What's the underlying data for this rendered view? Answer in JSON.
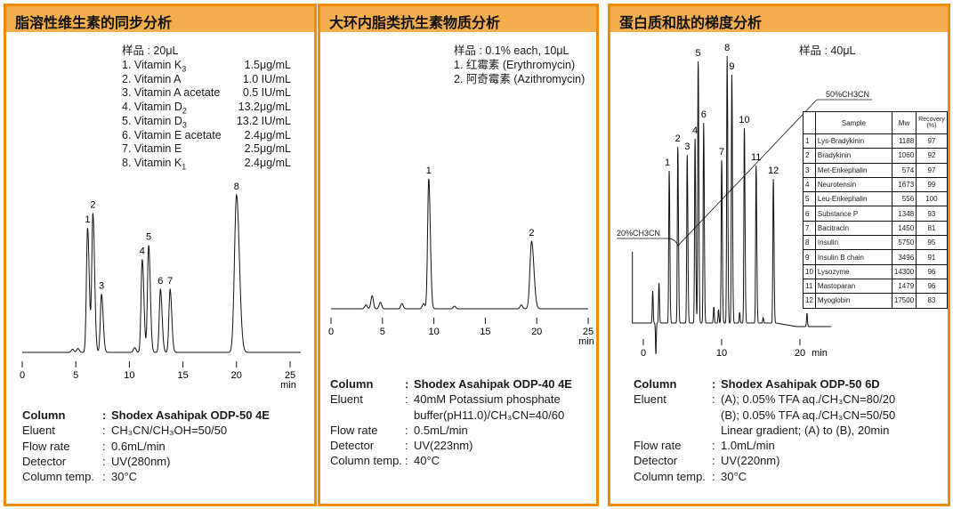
{
  "panels": [
    {
      "title": "脂溶性维生素的同步分析",
      "sample": "样品 : 20μL",
      "compounds": [
        {
          "no": "1.",
          "name": "Vitamin K",
          "sub": "3",
          "conc": "1.5μg/mL"
        },
        {
          "no": "2.",
          "name": "Vitamin A",
          "sub": "",
          "conc": "1.0 IU/mL"
        },
        {
          "no": "3.",
          "name": "Vitamin A acetate",
          "sub": "",
          "conc": "0.5 IU/mL"
        },
        {
          "no": "4.",
          "name": "Vitamin D",
          "sub": "2",
          "conc": "13.2μg/mL"
        },
        {
          "no": "5.",
          "name": "Vitamin D",
          "sub": "3",
          "conc": "13.2 IU/mL"
        },
        {
          "no": "6.",
          "name": "Vitamin E acetate",
          "sub": "",
          "conc": "2.4μg/mL"
        },
        {
          "no": "7.",
          "name": "Vitamin E",
          "sub": "",
          "conc": "2.5μg/mL"
        },
        {
          "no": "8.",
          "name": "Vitamin K",
          "sub": "1",
          "conc": "2.4μg/mL"
        }
      ],
      "conditions": [
        {
          "label": "Column",
          "value": "Shodex Asahipak ODP-50 4E"
        },
        {
          "label": "Eluent",
          "value": "CH₃CN/CH₃OH=50/50"
        },
        {
          "label": "Flow rate",
          "value": "0.6mL/min"
        },
        {
          "label": "Detector",
          "value": "UV(280nm)"
        },
        {
          "label": "Column temp.",
          "value": "30°C"
        }
      ]
    },
    {
      "title": "大环内脂类抗生素物质分析",
      "sample": "样品 : 0.1% each, 10μL",
      "compounds": [
        {
          "line": "1. 红霉素 (Erythromycin)"
        },
        {
          "line": "2. 阿奇霉素 (Azithromycin)"
        }
      ],
      "conditions": [
        {
          "label": "Column",
          "value": "Shodex Asahipak ODP-40 4E"
        },
        {
          "label": "Eluent",
          "value": "40mM Potassium phosphate"
        },
        {
          "label": "",
          "value": "buffer(pH11.0)/CH₃CN=40/60"
        },
        {
          "label": "Flow rate",
          "value": "0.5mL/min"
        },
        {
          "label": "Detector",
          "value": "UV(223nm)"
        },
        {
          "label": "Column temp.",
          "value": "40°C"
        }
      ]
    },
    {
      "title": "蛋白质和肽的梯度分析",
      "sample": "样品 : 40μL",
      "gradient_labels": {
        "start": "20%CH3CN",
        "end": "50%CH3CN"
      },
      "table": {
        "headers": [
          "",
          "Sample",
          "Mw",
          "Recovery (%)"
        ],
        "rows": [
          [
            "1",
            "Lys-Bradykinin",
            "1188",
            "97"
          ],
          [
            "2",
            "Bradykinin",
            "1060",
            "92"
          ],
          [
            "3",
            "Met-Enkephalin",
            "574",
            "97"
          ],
          [
            "4",
            "Neurotensin",
            "1673",
            "99"
          ],
          [
            "5",
            "Leu-Enkephalin",
            "556",
            "100"
          ],
          [
            "6",
            "Substance P",
            "1348",
            "93"
          ],
          [
            "7",
            "Bacitracin",
            "1450",
            "81"
          ],
          [
            "8",
            "Insulin",
            "5750",
            "95"
          ],
          [
            "9",
            "Insulin B chain",
            "3496",
            "91"
          ],
          [
            "10",
            "Lysozyme",
            "14300",
            "96"
          ],
          [
            "11",
            "Mastoparan",
            "1479",
            "96"
          ],
          [
            "12",
            "Myoglobin",
            "17500",
            "83"
          ]
        ]
      },
      "conditions": [
        {
          "label": "Column",
          "value": "Shodex Asahipak ODP-50 6D"
        },
        {
          "label": "Eluent",
          "value": "(A); 0.05% TFA aq./CH₃CN=80/20"
        },
        {
          "label": "",
          "value": "(B); 0.05% TFA aq./CH₃CN=50/50"
        },
        {
          "label": "",
          "value": "Linear gradient; (A) to (B), 20min"
        },
        {
          "label": "Flow rate",
          "value": "1.0mL/min"
        },
        {
          "label": "Detector",
          "value": "UV(220nm)"
        },
        {
          "label": "Column temp.",
          "value": "30°C"
        }
      ]
    }
  ],
  "chart_data": [
    {
      "type": "line",
      "xlabel": "min",
      "xlim": [
        0,
        25
      ],
      "xticks": [
        "0",
        "5",
        "10",
        "15",
        "20",
        "25"
      ],
      "grid": false,
      "peaks": [
        {
          "label": "1",
          "rt": 6.1,
          "height": 79
        },
        {
          "label": "2",
          "rt": 6.6,
          "height": 88
        },
        {
          "label": "3",
          "rt": 7.4,
          "height": 37
        },
        {
          "label": "4",
          "rt": 11.2,
          "height": 59
        },
        {
          "label": "5",
          "rt": 11.8,
          "height": 68
        },
        {
          "label": "6",
          "rt": 12.9,
          "height": 40
        },
        {
          "label": "7",
          "rt": 13.8,
          "height": 40
        },
        {
          "label": "8",
          "rt": 20.0,
          "height": 100
        }
      ],
      "minor_peaks": [
        {
          "rt": 4.7,
          "height": 2
        },
        {
          "rt": 5.2,
          "height": 2.5
        },
        {
          "rt": 10.5,
          "height": 3
        }
      ]
    },
    {
      "type": "line",
      "xlabel": "min",
      "xlim": [
        0,
        25
      ],
      "xticks": [
        "0",
        "5",
        "10",
        "15",
        "20",
        "25"
      ],
      "grid": false,
      "peaks": [
        {
          "label": "1",
          "rt": 9.5,
          "height": 100
        },
        {
          "label": "2",
          "rt": 19.5,
          "height": 52
        }
      ],
      "minor_peaks": [
        {
          "rt": 3.4,
          "height": 3
        },
        {
          "rt": 4.0,
          "height": 10
        },
        {
          "rt": 4.8,
          "height": 5
        },
        {
          "rt": 6.9,
          "height": 4
        },
        {
          "rt": 9.0,
          "height": 4
        },
        {
          "rt": 12.0,
          "height": 2
        },
        {
          "rt": 18.5,
          "height": 3
        }
      ]
    },
    {
      "type": "line",
      "xlabel": "min",
      "xlim": [
        -1,
        21
      ],
      "xticks": [
        "0",
        "10",
        "20"
      ],
      "grid": false,
      "peaks": [
        {
          "label": "1",
          "rt": 3.3,
          "height": 57
        },
        {
          "label": "2",
          "rt": 4.4,
          "height": 66
        },
        {
          "label": "3",
          "rt": 5.6,
          "height": 63
        },
        {
          "label": "4",
          "rt": 6.6,
          "height": 69
        },
        {
          "label": "5",
          "rt": 7.0,
          "height": 98
        },
        {
          "label": "6",
          "rt": 7.7,
          "height": 75
        },
        {
          "label": "7",
          "rt": 10.0,
          "height": 61
        },
        {
          "label": "8",
          "rt": 10.7,
          "height": 100
        },
        {
          "label": "9",
          "rt": 11.3,
          "height": 93
        },
        {
          "label": "10",
          "rt": 12.9,
          "height": 73
        },
        {
          "label": "11",
          "rt": 14.4,
          "height": 59
        },
        {
          "label": "12",
          "rt": 16.6,
          "height": 54
        }
      ],
      "minor_peaks": [
        {
          "rt": 1.2,
          "height": 12
        },
        {
          "rt": 2.0,
          "height": 15
        },
        {
          "rt": 9.0,
          "height": 6
        },
        {
          "rt": 9.6,
          "height": 5
        },
        {
          "rt": 12.3,
          "height": 4
        },
        {
          "rt": 15.3,
          "height": 2
        },
        {
          "rt": 20.9,
          "height": 5
        }
      ]
    }
  ],
  "colors": {
    "border": "#F08A00",
    "header": "#F4AE4E",
    "trace": "#111111"
  }
}
